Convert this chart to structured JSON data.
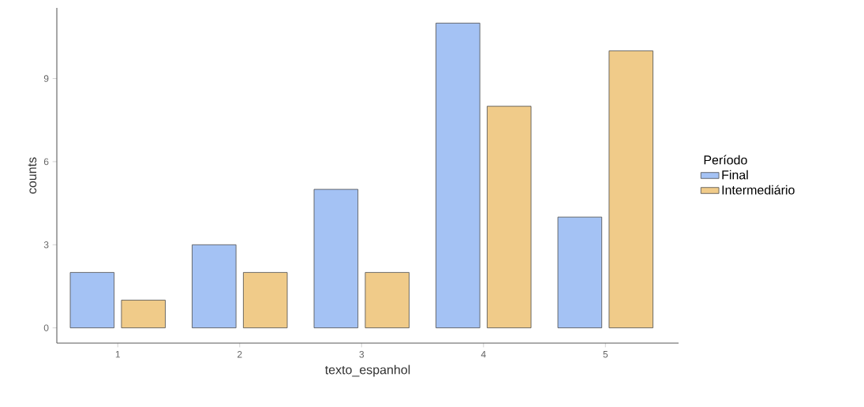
{
  "chart_data": {
    "type": "bar",
    "xlabel": "texto_espanhol",
    "ylabel": "counts",
    "legend_title": "Período",
    "categories": [
      "1",
      "2",
      "3",
      "4",
      "5"
    ],
    "series": [
      {
        "name": "Final",
        "color": "#a4c2f4",
        "values": [
          2,
          3,
          5,
          11,
          4
        ]
      },
      {
        "name": "Intermediário",
        "color": "#f0cb89",
        "values": [
          1,
          2,
          2,
          8,
          10
        ]
      }
    ],
    "ylim": [
      -0.55,
      11.55
    ],
    "yticks": [
      0,
      3,
      6,
      9
    ],
    "grid": false,
    "legend": "right"
  }
}
